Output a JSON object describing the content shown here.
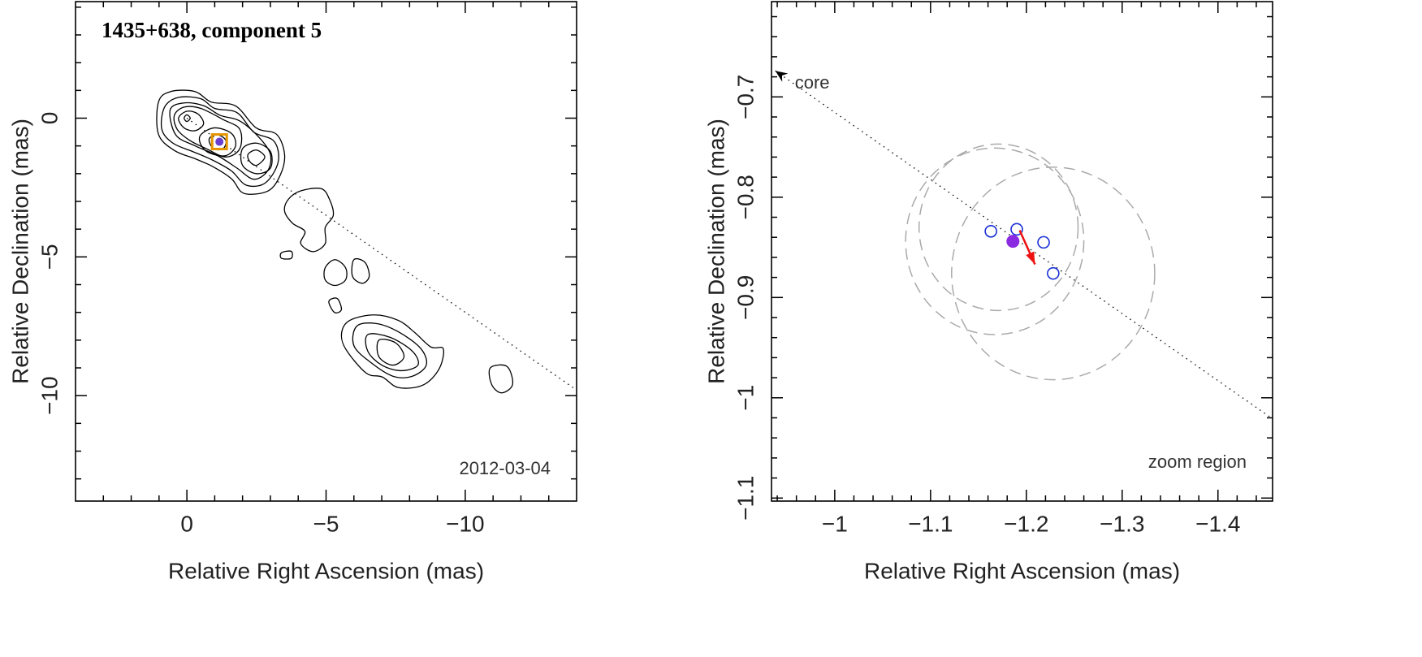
{
  "chart_data": [
    {
      "type": "contour",
      "title": "1435+638, component 5",
      "annotation": "2012-03-04",
      "xlabel": "Relative Right Ascension (mas)",
      "ylabel": "Relative Declination (mas)",
      "xlim": [
        4,
        -14
      ],
      "ylim": [
        -13.8,
        4.2
      ],
      "xticks": [
        0,
        {
          "value": -5,
          "label": "−5"
        },
        {
          "value": -10,
          "label": "−10"
        }
      ],
      "yticks": [
        0,
        {
          "value": -5,
          "label": "−5"
        },
        {
          "value": -10,
          "label": "−10"
        }
      ],
      "xminorticks": [
        3,
        2,
        1,
        -1,
        -2,
        -3,
        -4,
        -6,
        -7,
        -8,
        -9,
        -11,
        -12,
        -13
      ],
      "yminorticks": [
        4,
        3,
        2,
        1,
        -1,
        -2,
        -3,
        -4,
        -6,
        -7,
        -8,
        -9,
        -11,
        -12,
        -13
      ],
      "direction": {
        "x": [
          0,
          -14
        ],
        "y": [
          0,
          -9.8
        ]
      },
      "component": {
        "x": -1.17,
        "y": -0.85,
        "color": "#e69500",
        "fill": "#6a3fd0"
      },
      "contours": [
        {
          "x": [
            1.02,
            0.58,
            -0.29,
            -0.88,
            -1.75,
            -2.49,
            -3.22,
            -3.51,
            -3.36,
            -2.92,
            -2.05,
            -1.61,
            -0.94,
            -0.29,
            0.44,
            1.02
          ],
          "y": [
            0.58,
            0.96,
            0.96,
            0.58,
            0.44,
            -0.35,
            -0.58,
            -1.31,
            -2.04,
            -2.62,
            -2.71,
            -2.19,
            -1.75,
            -1.46,
            -1.17,
            -0.58
          ]
        },
        {
          "x": [
            0.8,
            0.3,
            -0.5,
            -1.0,
            -1.8,
            -2.4,
            -3.1,
            -3.3,
            -3.1,
            -2.7,
            -2.1,
            -1.6,
            -0.9,
            -0.2,
            0.5,
            0.9
          ],
          "y": [
            0.4,
            0.75,
            0.7,
            0.35,
            0.2,
            -0.5,
            -0.8,
            -1.4,
            -2.0,
            -2.4,
            -2.4,
            -1.9,
            -1.5,
            -1.2,
            -0.9,
            -0.4
          ]
        },
        {
          "x": [
            0.6,
            0.1,
            -0.6,
            -1.2,
            -1.9,
            -2.6,
            -3.0,
            -2.9,
            -2.4,
            -1.8,
            -1.1,
            -0.3,
            0.4
          ],
          "y": [
            0.3,
            0.55,
            0.45,
            0.1,
            -0.1,
            -0.7,
            -1.3,
            -1.9,
            -2.2,
            -1.8,
            -1.35,
            -1.0,
            -0.6
          ]
        },
        {
          "x": [
            0.45,
            0.1,
            -0.5,
            -1.3,
            -1.9,
            -1.9,
            -1.4,
            -0.7,
            -0.1,
            0.35
          ],
          "y": [
            0.1,
            0.4,
            0.35,
            -0.05,
            -0.4,
            -1.1,
            -1.4,
            -1.1,
            -0.8,
            -0.4
          ]
        },
        {
          "x": [
            0.3,
            0.0,
            -0.4,
            -0.6,
            -0.3,
            0.1
          ],
          "y": [
            0.0,
            0.25,
            0.15,
            -0.2,
            -0.45,
            -0.35
          ]
        },
        {
          "x": [
            0.1,
            0,
            -0.12,
            0
          ],
          "y": [
            0,
            0.12,
            0,
            -0.12
          ]
        },
        {
          "x": [
            -0.5,
            -1.0,
            -1.6,
            -1.75,
            -1.4,
            -0.8,
            -0.5
          ],
          "y": [
            -0.6,
            -0.35,
            -0.55,
            -1.0,
            -1.35,
            -1.25,
            -0.95
          ]
        },
        {
          "x": [
            -0.8,
            -1.1,
            -1.4,
            -1.3,
            -0.95
          ],
          "y": [
            -0.75,
            -0.6,
            -0.8,
            -1.1,
            -1.1
          ]
        },
        {
          "x": [
            -2.0,
            -2.5,
            -3.0,
            -3.0,
            -2.5,
            -2.0
          ],
          "y": [
            -1.1,
            -0.9,
            -1.2,
            -1.8,
            -2.0,
            -1.7
          ]
        },
        {
          "x": [
            -2.2,
            -2.5,
            -2.8,
            -2.5,
            -2.25
          ],
          "y": [
            -1.3,
            -1.15,
            -1.4,
            -1.7,
            -1.55
          ]
        },
        {
          "x": [
            -3.65,
            -4.09,
            -4.82,
            -5.12,
            -5.26,
            -4.97,
            -4.97,
            -4.53,
            -4.09,
            -4.24,
            -3.8,
            -3.51
          ],
          "y": [
            -2.92,
            -2.62,
            -2.54,
            -2.92,
            -3.5,
            -3.94,
            -4.52,
            -4.81,
            -4.52,
            -4.08,
            -3.79,
            -3.35
          ]
        },
        {
          "x": [
            -4.97,
            -5.32,
            -5.7,
            -5.7,
            -5.32,
            -4.97
          ],
          "y": [
            -5.39,
            -5.1,
            -5.39,
            -5.83,
            -6.03,
            -5.83
          ]
        },
        {
          "x": [
            -6.0,
            -6.4,
            -6.55,
            -6.3,
            -5.95
          ],
          "y": [
            -5.1,
            -5.2,
            -5.7,
            -5.95,
            -5.7
          ]
        },
        {
          "x": [
            -3.4,
            -3.75,
            -3.75,
            -3.4
          ],
          "y": [
            -4.85,
            -4.8,
            -5.05,
            -5.05
          ]
        },
        {
          "x": [
            -5.1,
            -5.4,
            -5.55,
            -5.3
          ],
          "y": [
            -6.6,
            -6.5,
            -6.9,
            -7.0
          ]
        },
        {
          "x": [
            -5.85,
            -6.73,
            -7.6,
            -8.19,
            -8.77,
            -9.21,
            -9.06,
            -8.48,
            -7.6,
            -7.02,
            -6.43,
            -5.7,
            -5.56
          ],
          "y": [
            -7.29,
            -7.09,
            -7.29,
            -7.73,
            -8.25,
            -8.31,
            -9.04,
            -9.62,
            -9.71,
            -9.33,
            -9.18,
            -8.31,
            -7.73
          ]
        },
        {
          "x": [
            -6.1,
            -6.8,
            -7.6,
            -8.4,
            -8.6,
            -8.1,
            -7.4,
            -6.6,
            -6.0
          ],
          "y": [
            -7.5,
            -7.4,
            -7.7,
            -8.3,
            -8.9,
            -9.3,
            -9.3,
            -8.8,
            -8.2
          ]
        },
        {
          "x": [
            -6.5,
            -7.3,
            -8.1,
            -8.3,
            -7.7,
            -7.0,
            -6.5
          ],
          "y": [
            -7.8,
            -7.9,
            -8.4,
            -8.9,
            -9.1,
            -8.9,
            -8.4
          ]
        },
        {
          "x": [
            -6.9,
            -7.5,
            -7.8,
            -7.4,
            -6.9
          ],
          "y": [
            -8.0,
            -8.1,
            -8.6,
            -8.9,
            -8.6
          ]
        },
        {
          "x": [
            -10.9,
            -11.5,
            -11.7,
            -11.3,
            -10.95
          ],
          "y": [
            -9.0,
            -8.95,
            -9.6,
            -9.9,
            -9.6
          ]
        }
      ]
    },
    {
      "type": "scatter",
      "annotation": "zoom region",
      "core_label": "core",
      "xlabel": "Relative Right Ascension (mas)",
      "ylabel": "Relative Declination (mas)",
      "xlim": [
        -0.934,
        -1.457
      ],
      "ylim": [
        -1.103,
        -0.605
      ],
      "xticks": [
        {
          "value": -1,
          "label": "−1"
        },
        {
          "value": -1.1,
          "label": "−1.1"
        },
        {
          "value": -1.2,
          "label": "−1.2"
        },
        {
          "value": -1.3,
          "label": "−1.3"
        },
        {
          "value": -1.4,
          "label": "−1.4"
        }
      ],
      "yticks": [
        {
          "value": -0.7,
          "label": "−0.7"
        },
        {
          "value": -0.8,
          "label": "−0.8"
        },
        {
          "value": -0.9,
          "label": "−0.9"
        },
        {
          "value": -1,
          "label": "−1"
        },
        {
          "value": -1.1,
          "label": "−1.1"
        }
      ],
      "xminorticks": [
        -0.94,
        -0.96,
        -0.98,
        -1.02,
        -1.04,
        -1.06,
        -1.08,
        -1.12,
        -1.14,
        -1.16,
        -1.18,
        -1.22,
        -1.24,
        -1.26,
        -1.28,
        -1.32,
        -1.34,
        -1.36,
        -1.38,
        -1.42,
        -1.44
      ],
      "yminorticks": [
        -0.62,
        -0.64,
        -0.66,
        -0.68,
        -0.72,
        -0.74,
        -0.76,
        -0.78,
        -0.82,
        -0.84,
        -0.86,
        -0.88,
        -0.92,
        -0.94,
        -0.96,
        -0.98,
        -1.02,
        -1.04,
        -1.06,
        -1.08
      ],
      "core_line": {
        "x": [
          -0.938,
          -1.457
        ],
        "y": [
          -0.674,
          -1.021
        ]
      },
      "circles": {
        "x": [
          -1.167,
          -1.171,
          -1.228
        ],
        "y": [
          -0.844,
          -0.83,
          -0.876
        ],
        "r": [
          0.093,
          0.083,
          0.106
        ],
        "color": "#aaaaaa"
      },
      "points": {
        "x": [
          -1.163,
          -1.19,
          -1.218,
          -1.228
        ],
        "y": [
          -0.834,
          -0.832,
          -0.845,
          -0.876
        ],
        "color": "#1a2fd6"
      },
      "highlight": {
        "x": -1.186,
        "y": -0.844,
        "color": "#8a2be2"
      },
      "arrow": {
        "x": [
          -1.193,
          -1.209
        ],
        "y": [
          -0.833,
          -0.867
        ],
        "color": "#ee1111"
      }
    }
  ]
}
